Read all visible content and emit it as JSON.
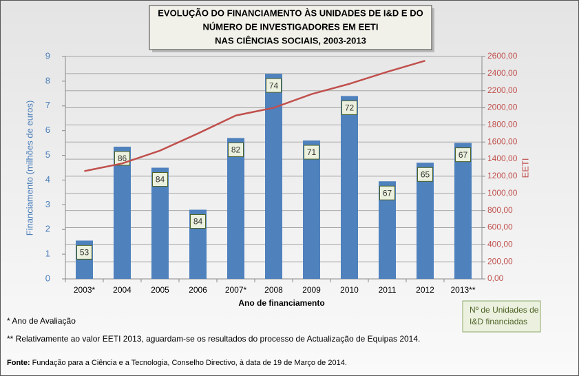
{
  "chart_data": {
    "type": "bar_line",
    "title": [
      "EVOLUÇÃO DO FINANCIAMENTO ÀS UNIDADES DE I&D E DO",
      "NÚMERO DE INVESTIGADORES EM EETI",
      "NAS CIÊNCIAS SOCIAIS, 2003-2013"
    ],
    "x_label": "Ano de financiamento",
    "y_label": "Financiamento (milhões de euros)",
    "y2_label": "EETI",
    "categories": [
      "2003*",
      "2004",
      "2005",
      "2006",
      "2007*",
      "2008",
      "2009",
      "2010",
      "2011",
      "2012",
      "2013**"
    ],
    "series": [
      {
        "type": "bar",
        "color": "#4f81bd",
        "values": [
          1.55,
          5.35,
          4.5,
          2.8,
          5.7,
          8.3,
          5.6,
          7.4,
          3.95,
          4.7,
          5.5
        ],
        "units": [
          53,
          86,
          84,
          84,
          82,
          74,
          71,
          72,
          67,
          65,
          67
        ]
      },
      {
        "type": "line",
        "axis": "y2",
        "color": "#c0504d",
        "values": [
          1260,
          1350,
          1500,
          1700,
          1910,
          2000,
          2160,
          2280,
          2420,
          2550,
          null
        ]
      }
    ],
    "ylim": [
      0,
      9
    ],
    "yticks": [
      0,
      1,
      2,
      3,
      4,
      5,
      6,
      7,
      8,
      9
    ],
    "y2lim": [
      0,
      2600
    ],
    "y2ticks": [
      {
        "value": 0,
        "label": "0,00"
      },
      {
        "value": 200,
        "label": "200,00"
      },
      {
        "value": 400,
        "label": "400,00"
      },
      {
        "value": 600,
        "label": "600,00"
      },
      {
        "value": 800,
        "label": "800,00"
      },
      {
        "value": 1000,
        "label": "1000,00"
      },
      {
        "value": 1200,
        "label": "1200,00"
      },
      {
        "value": 1400,
        "label": "1400,00"
      },
      {
        "value": 1600,
        "label": "1600,00"
      },
      {
        "value": 1800,
        "label": "1800,00"
      },
      {
        "value": 2000,
        "label": "2000,00"
      },
      {
        "value": 2200,
        "label": "2200,00"
      },
      {
        "value": 2400,
        "label": "2400,00"
      },
      {
        "value": 2600,
        "label": "2600,00"
      }
    ],
    "grid": true,
    "units_legend": [
      "Nº de Unidades de",
      "I&D  financiadas"
    ],
    "notes": [
      "* Ano de Avaliação",
      "** Relativamente ao valor EETI 2013, aguardam-se os resultados do processo de Actualização de Equipas 2014."
    ],
    "source_label": "Fonte:",
    "source": " Fundação para a Ciência e a Tecnologia, Conselho Directivo, à data de 19 de Março de 2014."
  }
}
